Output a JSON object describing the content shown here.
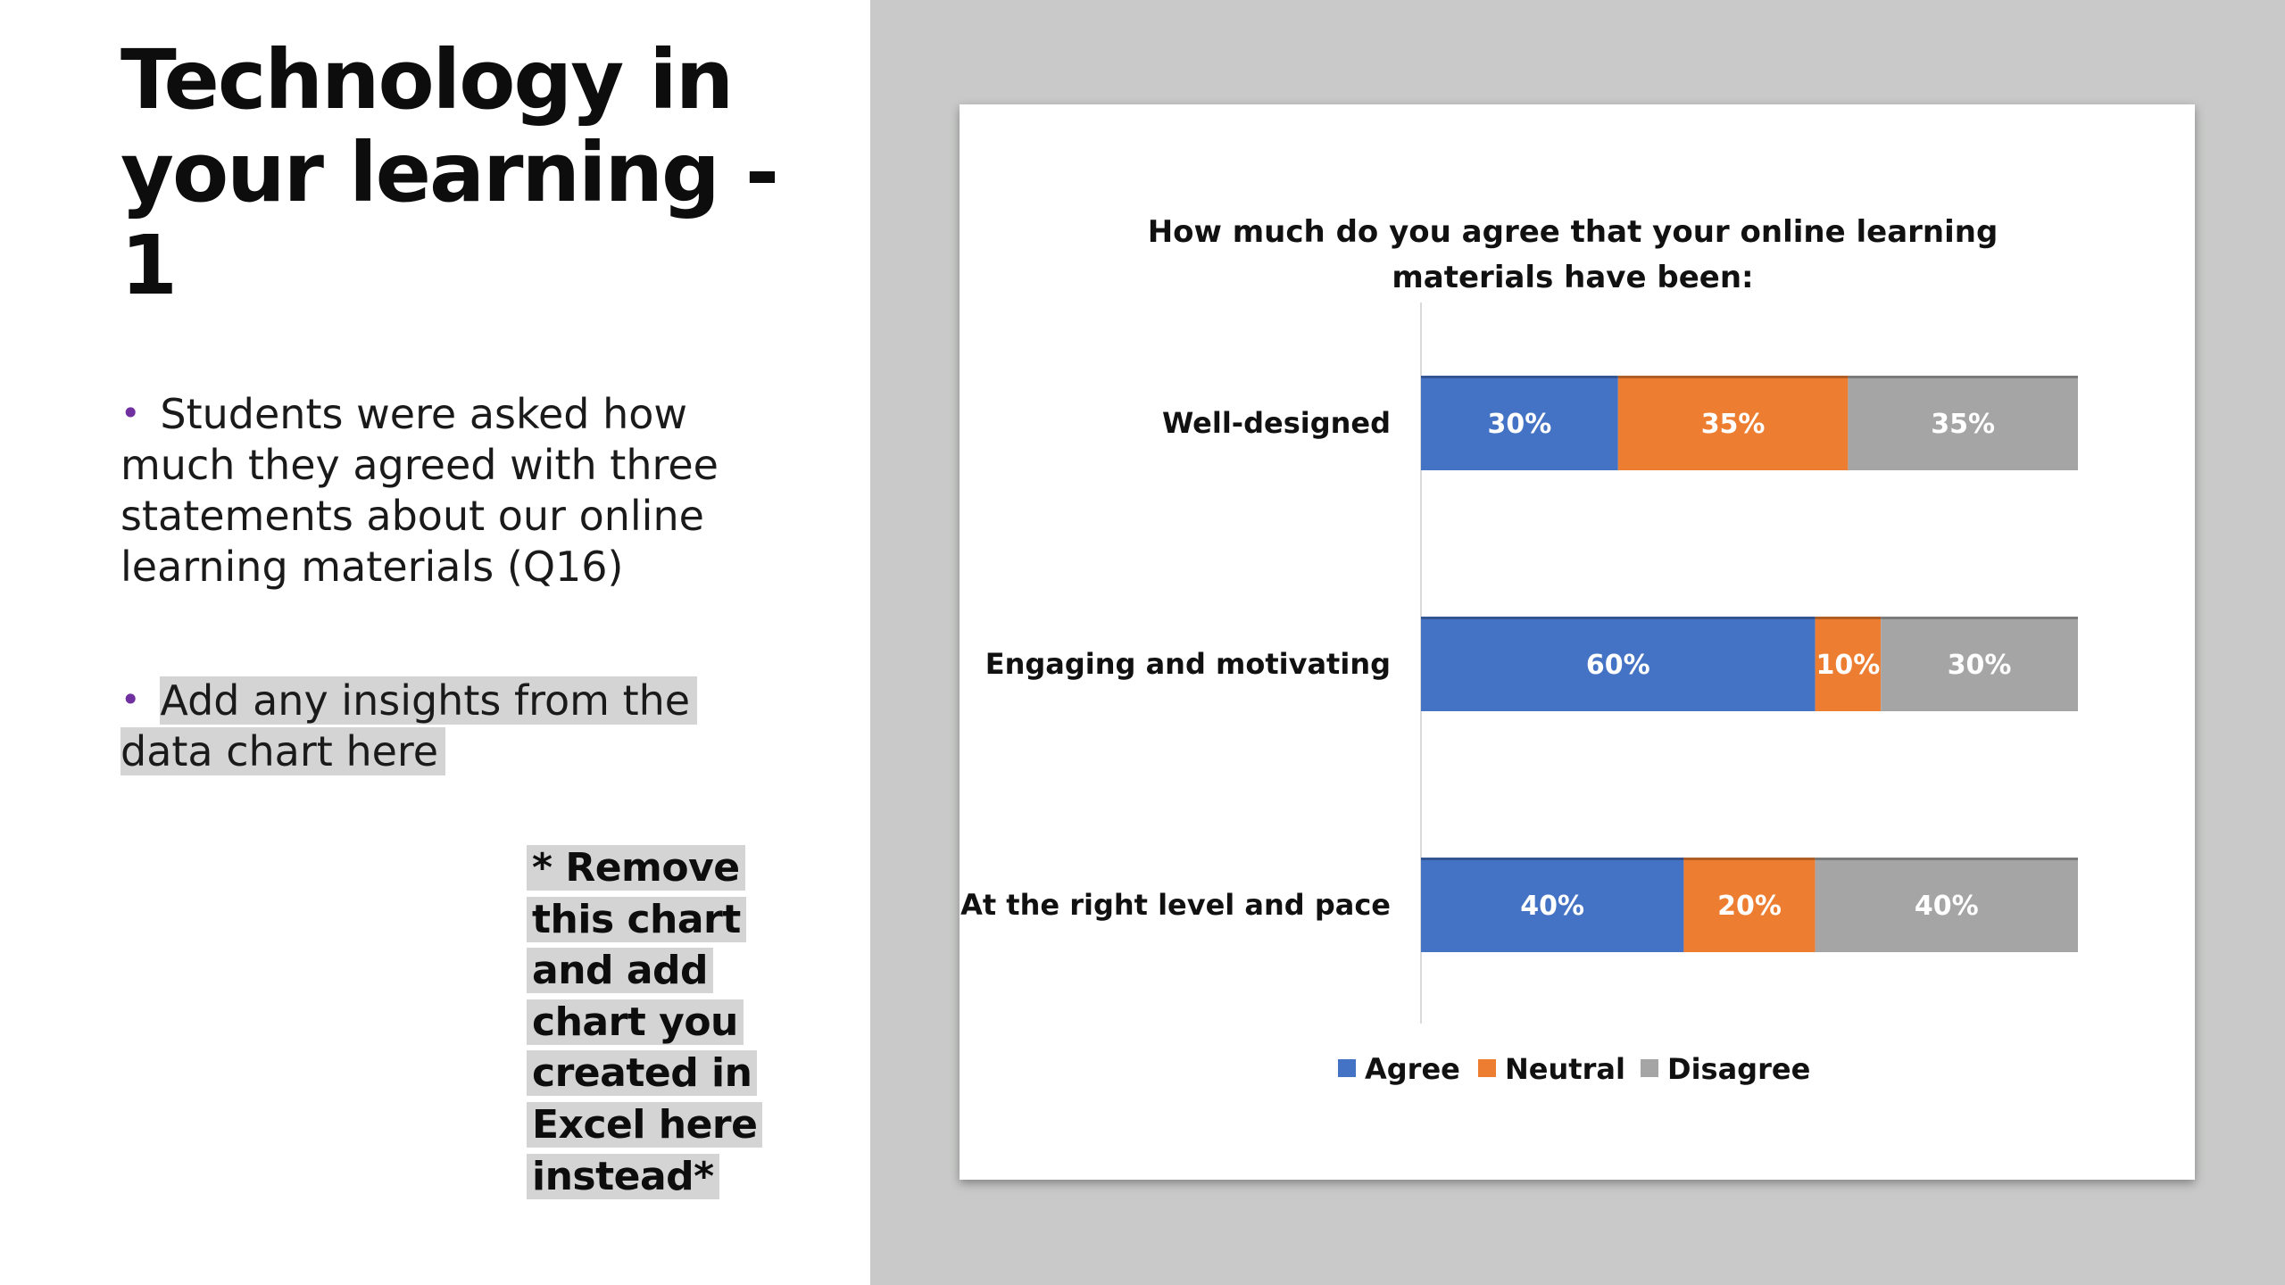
{
  "slide": {
    "title_lines": [
      "Technology in",
      "your learning -",
      "1"
    ],
    "bullets": [
      "Students were asked how much they agreed with three statements about our online learning materials (Q16)",
      "Add any insights from the data chart here"
    ],
    "note": "* Remove this chart and add chart you created in Excel here instead*"
  },
  "colors": {
    "left_background": "#ffffff",
    "right_background": "#c8c9c8",
    "bullet": "#7030a0",
    "agree": "#4472c4",
    "neutral": "#ed7d31",
    "disagree": "#a5a5a5"
  },
  "chart_data": {
    "type": "bar",
    "orientation": "horizontal",
    "stacked": "percent",
    "title_lines": [
      "How much do you agree that your online learning",
      "materials have been:"
    ],
    "categories": [
      "Well-designed",
      "Engaging and motivating",
      "At the right level and pace"
    ],
    "series": [
      {
        "name": "Agree",
        "values": [
          30,
          60,
          40
        ],
        "labels": [
          "30%",
          "60%",
          "40%"
        ],
        "color": "#4472c4"
      },
      {
        "name": "Neutral",
        "values": [
          35,
          10,
          20
        ],
        "labels": [
          "35%",
          "10%",
          "20%"
        ],
        "color": "#ed7d31"
      },
      {
        "name": "Disagree",
        "values": [
          35,
          30,
          40
        ],
        "labels": [
          "35%",
          "30%",
          "40%"
        ],
        "color": "#a5a5a5"
      }
    ],
    "xlim": [
      0,
      100
    ],
    "grid": false,
    "legend_position": "bottom"
  }
}
